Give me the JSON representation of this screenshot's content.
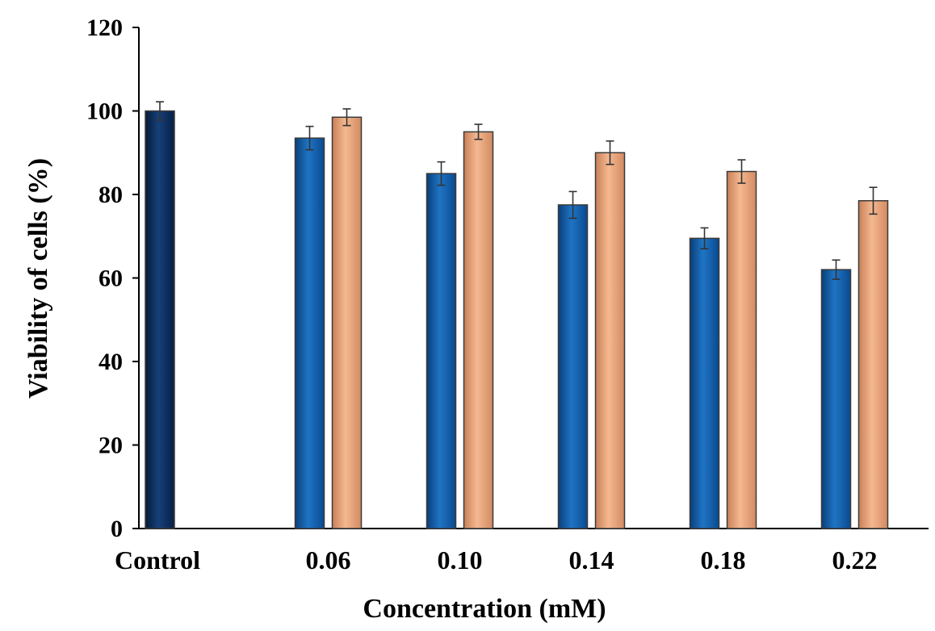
{
  "chart_data": {
    "type": "bar",
    "title": "",
    "xlabel": "Concentration (mM)",
    "ylabel": "Viability of cells (%)",
    "ylim": [
      0,
      120
    ],
    "yticks": [
      0,
      20,
      40,
      60,
      80,
      100,
      120
    ],
    "grid": false,
    "legend": "none",
    "categories": [
      "Control",
      "0.06",
      "0.10",
      "0.14",
      "0.18",
      "0.22"
    ],
    "series": [
      {
        "color": "#0a5aa8",
        "values": [
          100,
          93.5,
          85,
          77.5,
          69.5,
          62
        ],
        "errors": [
          2.2,
          2.8,
          2.8,
          3.2,
          2.5,
          2.3
        ]
      },
      {
        "color": "#e8a078",
        "values": [
          null,
          98.5,
          95,
          90,
          85.5,
          78.5
        ],
        "errors": [
          null,
          2.0,
          1.8,
          2.8,
          2.8,
          3.2
        ]
      }
    ],
    "control_color": "#0b2a55"
  }
}
